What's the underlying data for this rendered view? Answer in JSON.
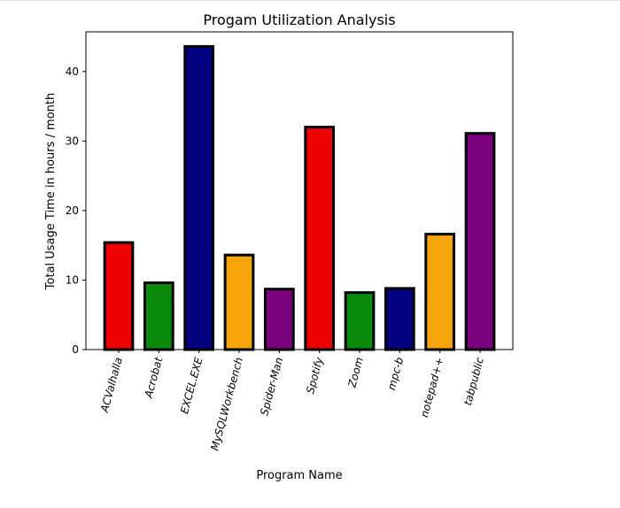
{
  "chart_data": {
    "type": "bar",
    "title": "Progam Utilization Analysis",
    "x_label": "Program Name",
    "y_label": "Total Usage Time in hours / month",
    "categories": [
      "ACValhalla",
      "Acrobat",
      "EXCEL.EXE",
      "MySQLWorkbench",
      "Spider-Man",
      "Spotify",
      "Zoom",
      "mpc-b",
      "notepad++",
      "tabpublic"
    ],
    "values": [
      15.4,
      9.6,
      43.6,
      13.6,
      8.7,
      32.0,
      8.2,
      8.8,
      16.6,
      31.1
    ],
    "colors": [
      "#ee0000",
      "#0a8c0a",
      "#000080",
      "#f5a50a",
      "#7a0080",
      "#ee0000",
      "#0a8c0a",
      "#000080",
      "#f5a50a",
      "#7a0080"
    ],
    "edge_color": "#000000",
    "ylim": [
      0,
      45.7
    ],
    "yticks": [
      0,
      10,
      20,
      30,
      40
    ],
    "grid": false
  }
}
